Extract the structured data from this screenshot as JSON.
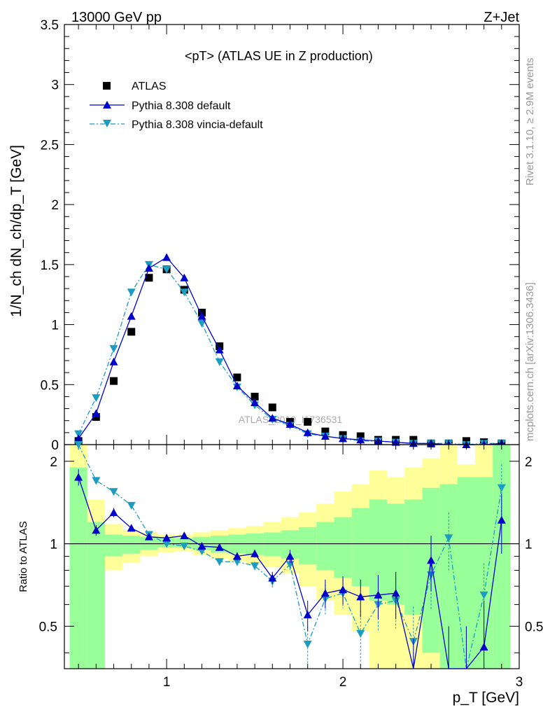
{
  "header": {
    "left": "13000 GeV pp",
    "right": "Z+Jet"
  },
  "side_labels": {
    "rivet": "Rivet 3.1.10, ≥ 2.9M events",
    "mcplots": "mcplots.cern.ch [arXiv:1306.3436]"
  },
  "watermark": "ATLAS_2019_I1736531",
  "colors": {
    "atlas": "#000000",
    "pythia": "#0000cc",
    "vincia": "#1b9cc0",
    "band_inner": "#99ff99",
    "band_outer": "#ffff99"
  },
  "chart_data": [
    {
      "type": "scatter",
      "panel": "main",
      "title": "<pT> (ATLAS UE in Z production)",
      "xlabel": "p_T [GeV]",
      "ylabel": "1/N_ch dN_ch/dp_T [GeV]",
      "xlim": [
        0.42,
        3.0
      ],
      "ylim": [
        0,
        3.5
      ],
      "yticks": [
        "0",
        "0.5",
        "1",
        "1.5",
        "2",
        "2.5",
        "3",
        "3.5"
      ],
      "legend_placement": "top-left",
      "x": [
        0.5,
        0.6,
        0.7,
        0.8,
        0.9,
        1.0,
        1.1,
        1.2,
        1.3,
        1.4,
        1.5,
        1.6,
        1.7,
        1.8,
        1.9,
        2.0,
        2.1,
        2.2,
        2.3,
        2.4,
        2.5,
        2.6,
        2.7,
        2.8,
        2.9
      ],
      "series": [
        {
          "name": "ATLAS",
          "marker": "square",
          "values": [
            0.03,
            0.23,
            0.53,
            0.94,
            1.39,
            1.46,
            1.29,
            1.1,
            0.82,
            0.56,
            0.4,
            0.31,
            0.19,
            0.19,
            0.11,
            0.08,
            0.07,
            0.04,
            0.04,
            0.04,
            0.01,
            0.01,
            0.03,
            0.02,
            0.01
          ]
        },
        {
          "name": "Pythia 8.308 default",
          "marker": "triangle-up",
          "style": "solid",
          "values": [
            0.05,
            0.26,
            0.69,
            1.07,
            1.47,
            1.56,
            1.39,
            1.07,
            0.79,
            0.49,
            0.35,
            0.22,
            0.17,
            0.1,
            0.07,
            0.05,
            0.04,
            0.03,
            0.02,
            0.01,
            0.01,
            0.0,
            0.0,
            0.0,
            0.01
          ],
          "errors": [
            0.01,
            0.01,
            0.02,
            0.02,
            0.02,
            0.03,
            0.02,
            0.02,
            0.02,
            0.01,
            0.01,
            0.01,
            0.01,
            0.01,
            0.0,
            0.0,
            0.0,
            0.0,
            0.0,
            0.0,
            0.0,
            0.0,
            0.0,
            0.0,
            0.0
          ]
        },
        {
          "name": "Pythia 8.308 vincia-default",
          "marker": "triangle-down",
          "style": "dashdot",
          "values": [
            0.09,
            0.39,
            0.8,
            1.27,
            1.5,
            1.46,
            1.27,
            1.01,
            0.69,
            0.48,
            0.33,
            0.21,
            0.16,
            0.09,
            0.07,
            0.05,
            0.03,
            0.03,
            0.02,
            0.01,
            0.01,
            0.01,
            0.0,
            0.01,
            0.01
          ],
          "errors": [
            0.01,
            0.01,
            0.02,
            0.02,
            0.02,
            0.02,
            0.02,
            0.02,
            0.01,
            0.01,
            0.01,
            0.01,
            0.01,
            0.0,
            0.0,
            0.0,
            0.0,
            0.0,
            0.0,
            0.0,
            0.0,
            0.0,
            0.0,
            0.0,
            0.0
          ]
        }
      ]
    },
    {
      "type": "line",
      "panel": "ratio",
      "xlabel": "p_T [GeV]",
      "ylabel": "Ratio to ATLAS",
      "xlim": [
        0.42,
        3.0
      ],
      "ylim": [
        0.35,
        2.3
      ],
      "ytick_labels": [
        "0.5",
        "1",
        "2"
      ],
      "yticks": [
        0.5,
        1,
        2
      ],
      "xticks": [
        1,
        2,
        3
      ],
      "reference_line": 1,
      "bin_edges": [
        0.45,
        0.55,
        0.65,
        0.75,
        0.85,
        0.95,
        1.05,
        1.15,
        1.25,
        1.35,
        1.45,
        1.55,
        1.65,
        1.75,
        1.85,
        1.95,
        2.05,
        2.15,
        2.25,
        2.35,
        2.45,
        2.55,
        2.65,
        2.75,
        2.85,
        2.95
      ],
      "band_inner": {
        "lo": [
          0.35,
          0.35,
          0.9,
          0.92,
          0.95,
          0.97,
          0.97,
          0.95,
          0.93,
          0.92,
          0.91,
          0.9,
          0.88,
          0.84,
          0.8,
          0.75,
          0.7,
          0.62,
          0.6,
          0.55,
          0.4,
          0.35,
          0.35,
          0.35,
          0.35
        ],
        "hi": [
          1.9,
          1.2,
          1.08,
          1.07,
          1.06,
          1.05,
          1.05,
          1.06,
          1.07,
          1.08,
          1.09,
          1.1,
          1.12,
          1.15,
          1.2,
          1.25,
          1.35,
          1.45,
          1.4,
          1.45,
          1.6,
          1.65,
          1.75,
          1.75,
          2.3
        ]
      },
      "band_outer": {
        "lo": [
          0.35,
          0.65,
          0.8,
          0.85,
          0.9,
          0.93,
          0.94,
          0.91,
          0.88,
          0.86,
          0.84,
          0.82,
          0.78,
          0.7,
          0.62,
          0.55,
          0.48,
          0.35,
          0.35,
          0.35,
          0.35,
          0.35,
          0.35,
          0.35,
          0.35
        ],
        "hi": [
          2.3,
          1.45,
          1.18,
          1.12,
          1.1,
          1.08,
          1.08,
          1.1,
          1.12,
          1.14,
          1.16,
          1.2,
          1.25,
          1.3,
          1.4,
          1.55,
          1.65,
          1.85,
          1.75,
          1.9,
          2.05,
          2.3,
          1.95,
          2.3,
          2.3
        ]
      },
      "series": [
        {
          "name": "Pythia 8.308 default",
          "values": [
            1.75,
            1.12,
            1.3,
            1.14,
            1.06,
            1.05,
            1.07,
            0.98,
            0.97,
            0.9,
            0.92,
            0.75,
            0.9,
            0.55,
            0.66,
            0.68,
            0.64,
            0.65,
            0.66,
            0.3,
            0.87,
            0.3,
            0.3,
            0.42,
            1.22
          ],
          "errors": [
            0.12,
            0.05,
            0.05,
            0.03,
            0.02,
            0.02,
            0.02,
            0.02,
            0.02,
            0.03,
            0.03,
            0.04,
            0.05,
            0.07,
            0.08,
            0.08,
            0.1,
            0.12,
            0.13,
            0.15,
            0.2,
            0.2,
            0.2,
            0.2,
            0.3
          ]
        },
        {
          "name": "Pythia 8.308 vincia-default",
          "values": [
            2.3,
            1.7,
            1.55,
            1.38,
            1.08,
            1.0,
            0.98,
            0.94,
            0.86,
            0.86,
            0.83,
            0.73,
            0.84,
            0.43,
            0.63,
            0.66,
            0.47,
            0.6,
            0.62,
            0.44,
            0.77,
            1.05,
            0.3,
            0.65,
            1.6
          ],
          "errors": [
            0.1,
            0.05,
            0.04,
            0.03,
            0.02,
            0.02,
            0.02,
            0.02,
            0.02,
            0.03,
            0.03,
            0.04,
            0.05,
            0.07,
            0.08,
            0.08,
            0.1,
            0.12,
            0.13,
            0.15,
            0.2,
            0.25,
            0.2,
            0.2,
            0.35
          ]
        }
      ]
    }
  ]
}
